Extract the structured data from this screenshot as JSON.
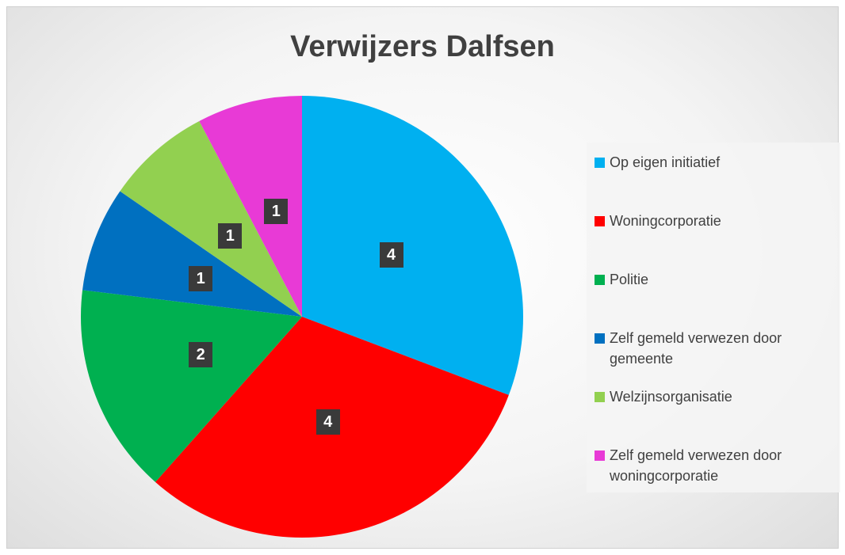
{
  "chart_data": {
    "type": "pie",
    "title": "Verwijzers Dalfsen",
    "categories": [
      "Op eigen initiatief",
      "Woningcorporatie",
      "Politie",
      "Zelf gemeld verwezen door gemeente",
      "Welzijnsorganisatie",
      "Zelf gemeld verwezen door woningcorporatie"
    ],
    "values": [
      4,
      4,
      2,
      1,
      1,
      1
    ],
    "colors": [
      "#00b0f0",
      "#ff0000",
      "#00b050",
      "#0070c0",
      "#92d050",
      "#e83ad6"
    ],
    "legend": "right"
  }
}
